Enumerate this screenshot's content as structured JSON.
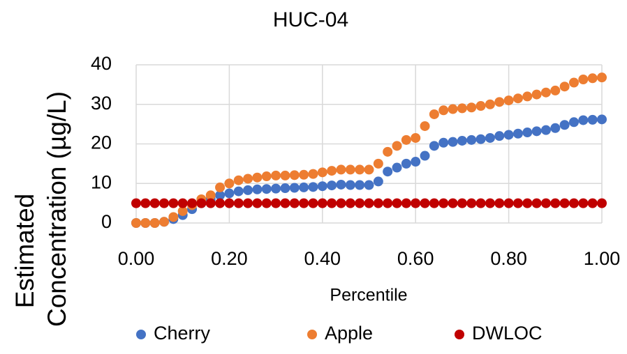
{
  "chart_data": {
    "type": "scatter",
    "title": "HUC-04",
    "xlabel": "Percentile",
    "ylabel": [
      "Estimated",
      "Concentration (µg/L)"
    ],
    "x": [
      0,
      0.02,
      0.04,
      0.06,
      0.08,
      0.1,
      0.12,
      0.14,
      0.16,
      0.18,
      0.2,
      0.22,
      0.24,
      0.26,
      0.28,
      0.3,
      0.32,
      0.34,
      0.36,
      0.38,
      0.4,
      0.42,
      0.44,
      0.46,
      0.48,
      0.5,
      0.52,
      0.54,
      0.56,
      0.58,
      0.6,
      0.62,
      0.64,
      0.66,
      0.68,
      0.7,
      0.72,
      0.74,
      0.76,
      0.78,
      0.8,
      0.82,
      0.84,
      0.86,
      0.88,
      0.9,
      0.92,
      0.94,
      0.96,
      0.98,
      1
    ],
    "series": [
      {
        "name": "Cherry",
        "color": "#4472c4",
        "values": [
          0,
          0,
          0,
          0.3,
          1,
          2,
          3.5,
          5,
          6,
          7,
          7.5,
          8,
          8.3,
          8.5,
          8.6,
          8.7,
          8.8,
          8.9,
          9,
          9.1,
          9.3,
          9.5,
          9.7,
          9.6,
          9.6,
          9.6,
          10.5,
          13,
          14,
          15,
          15.5,
          17,
          19.5,
          20.3,
          20.5,
          20.8,
          21,
          21.2,
          21.5,
          22,
          22.3,
          22.6,
          22.9,
          23.2,
          23.5,
          24,
          24.8,
          25.5,
          26,
          26.1,
          26.2
        ]
      },
      {
        "name": "Apple",
        "color": "#ed7d31",
        "values": [
          0,
          0,
          0,
          0.3,
          1.5,
          3,
          4.5,
          6,
          7,
          9,
          10,
          10.8,
          11.2,
          11.5,
          11.8,
          12,
          12,
          12.1,
          12.2,
          12.4,
          12.8,
          13.2,
          13.5,
          13.5,
          13.5,
          13.5,
          15,
          18,
          19.5,
          21,
          21.5,
          24.5,
          27.5,
          28.5,
          28.8,
          29,
          29.2,
          29.6,
          30,
          30.6,
          31,
          31.5,
          32,
          32.5,
          33,
          33.5,
          34.5,
          35.5,
          36.3,
          36.6,
          36.8
        ]
      },
      {
        "name": "DWLOC",
        "color": "#c00000",
        "values": [
          5,
          5,
          5,
          5,
          5,
          5,
          5,
          5,
          5,
          5,
          5,
          5,
          5,
          5,
          5,
          5,
          5,
          5,
          5,
          5,
          5,
          5,
          5,
          5,
          5,
          5,
          5,
          5,
          5,
          5,
          5,
          5,
          5,
          5,
          5,
          5,
          5,
          5,
          5,
          5,
          5,
          5,
          5,
          5,
          5,
          5,
          5,
          5,
          5,
          5,
          5
        ]
      }
    ],
    "xlim": [
      0,
      1
    ],
    "ylim": [
      0,
      40
    ],
    "xticks": [
      {
        "value": 0,
        "label": "0.00"
      },
      {
        "value": 0.2,
        "label": "0.20"
      },
      {
        "value": 0.4,
        "label": "0.40"
      },
      {
        "value": 0.6,
        "label": "0.60"
      },
      {
        "value": 0.8,
        "label": "0.80"
      },
      {
        "value": 1,
        "label": "1.00"
      }
    ],
    "yticks": [
      0,
      10,
      20,
      30,
      40
    ],
    "grid": true,
    "legend": "bottom"
  }
}
